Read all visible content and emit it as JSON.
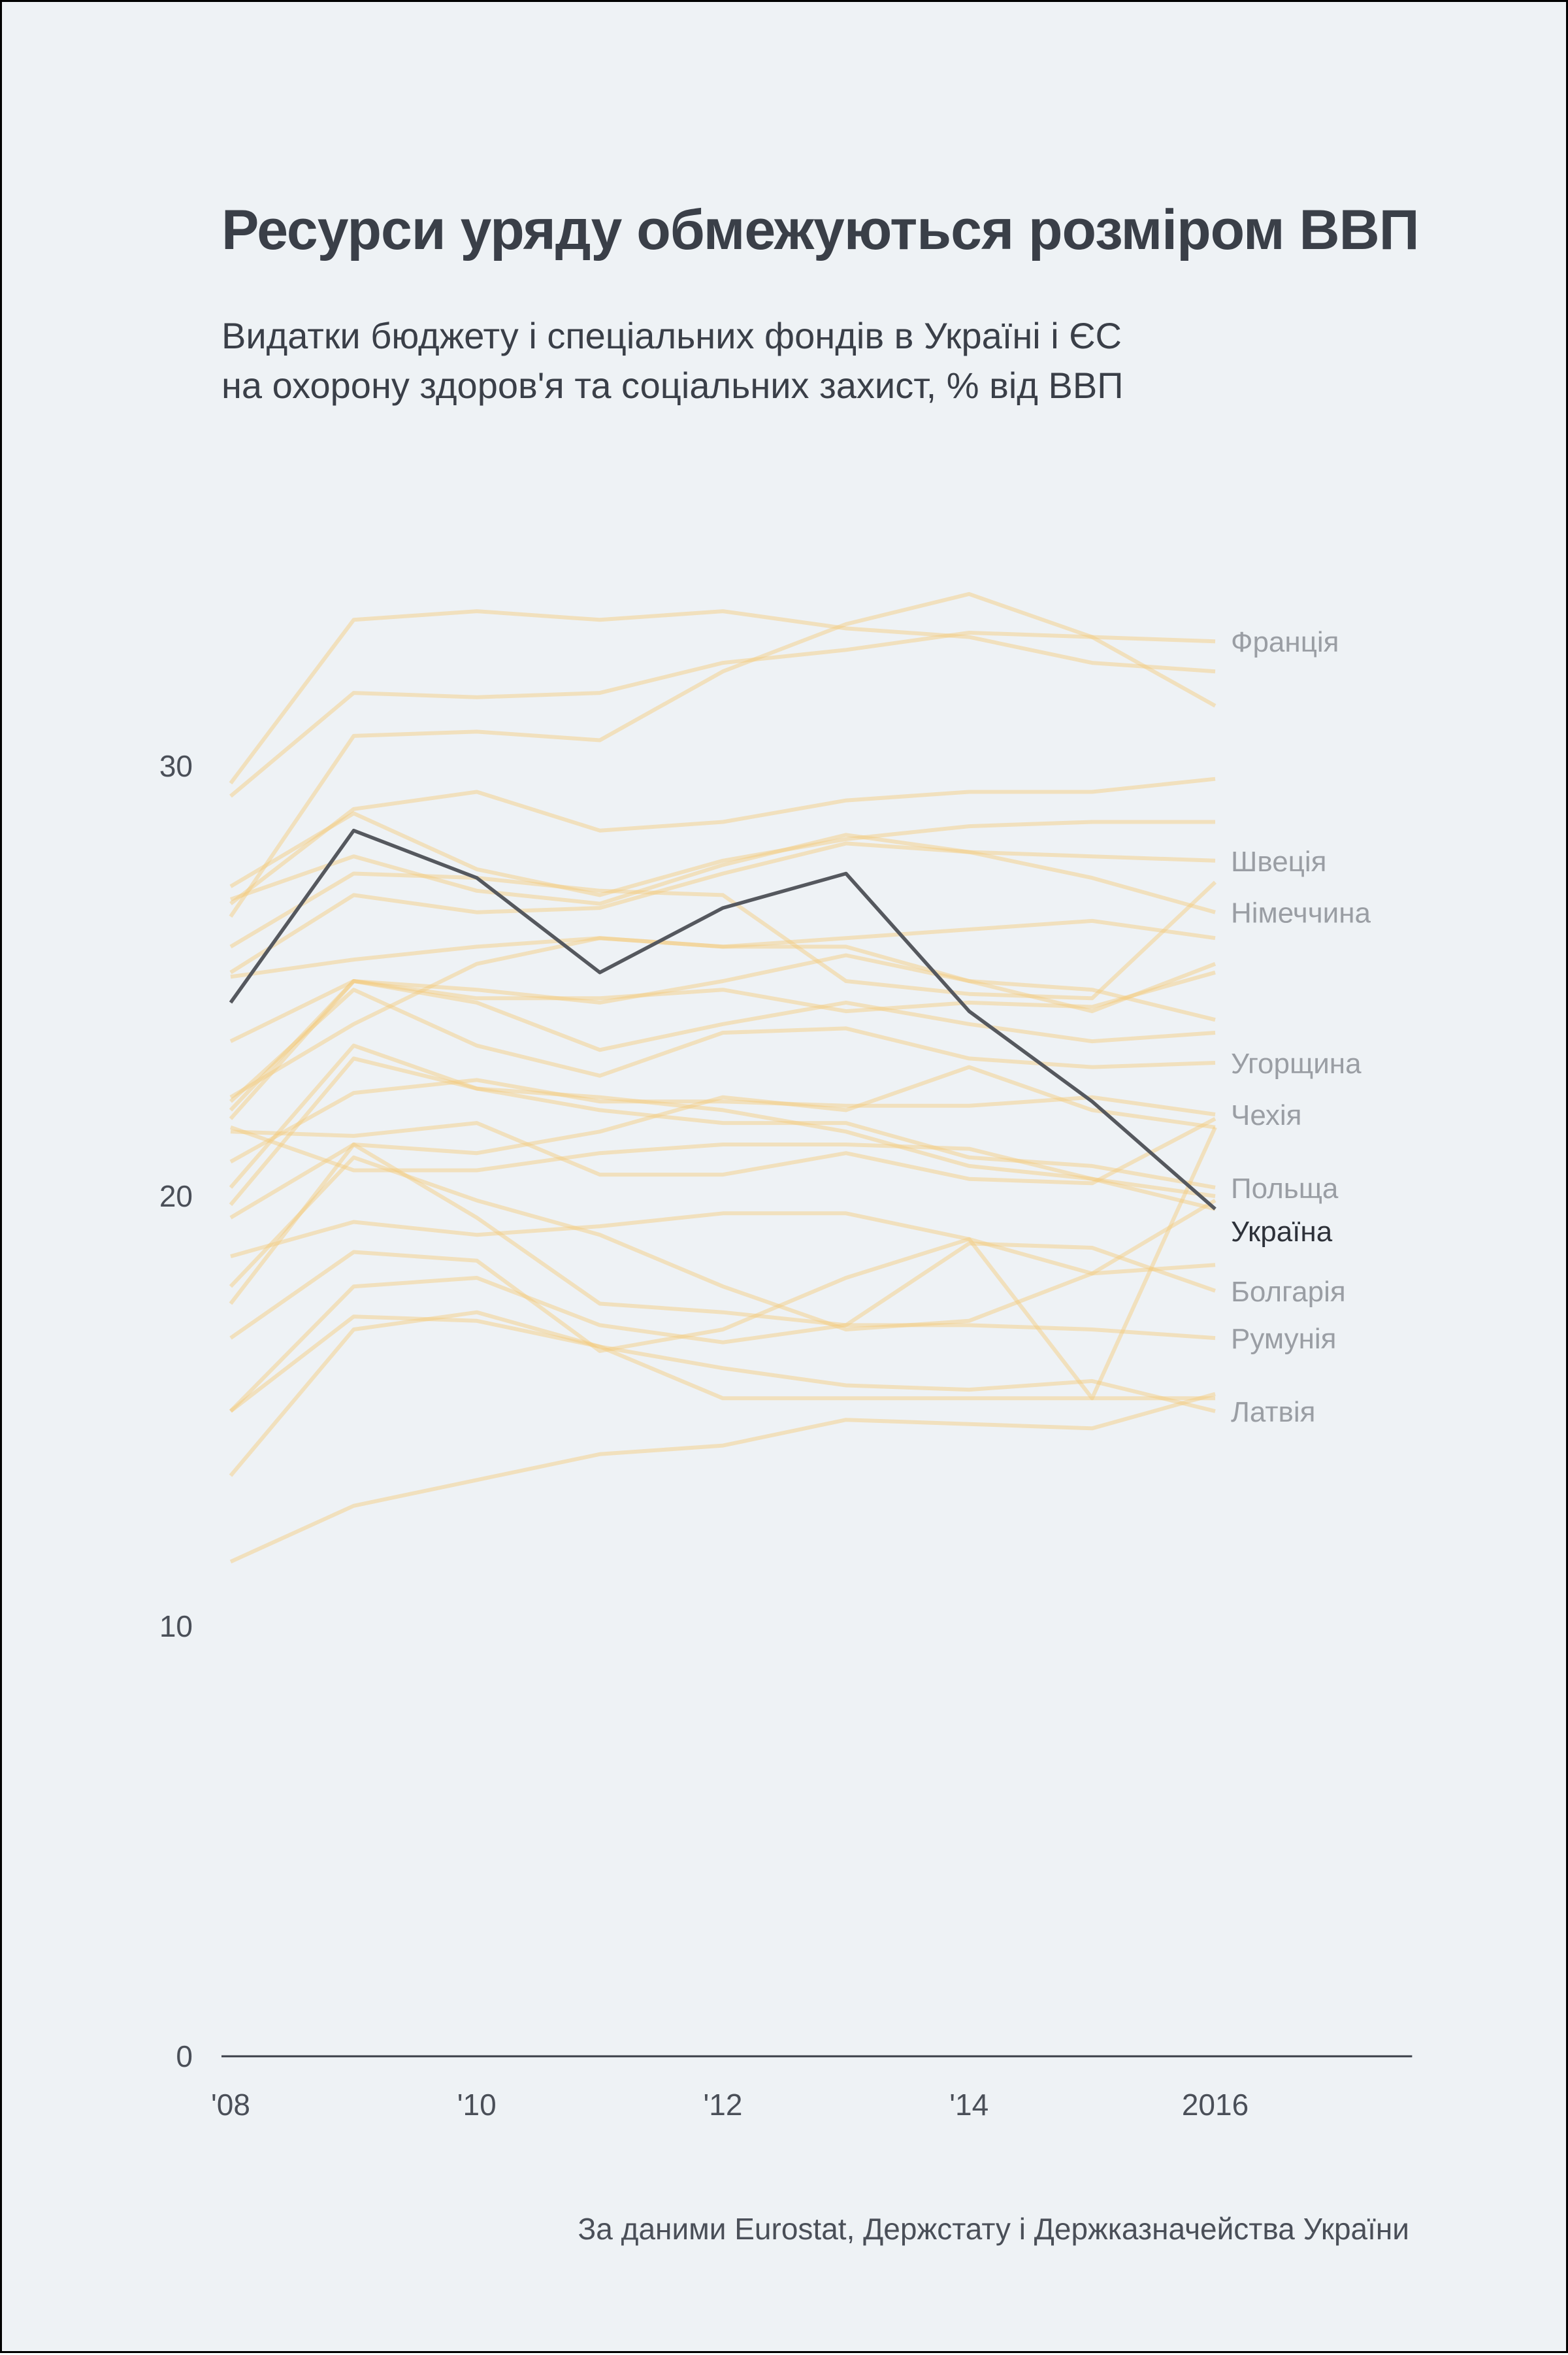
{
  "title": "Ресурси уряду обмежуються розміром ВВП",
  "subtitle_lines": [
    "Видатки бюджету і спеціальних фондів в Україні і ЄС",
    "на охорону здоров'я та соціальних захист, % від ВВП"
  ],
  "source": "За даними Eurostat, Держстату і Держказначейства України",
  "colors": {
    "background": "#eef2f5",
    "other_countries": "#f5c97a",
    "highlight": "#55585e",
    "axis": "#3a3f48"
  },
  "chart_data": {
    "type": "line",
    "x": [
      2008,
      2009,
      2010,
      2011,
      2012,
      2013,
      2014,
      2015,
      2016
    ],
    "x_tick_labels": [
      {
        "value": 2008,
        "label": "'08"
      },
      {
        "value": 2010,
        "label": "'10"
      },
      {
        "value": 2012,
        "label": "'12"
      },
      {
        "value": 2014,
        "label": "'14"
      },
      {
        "value": 2016,
        "label": "2016"
      }
    ],
    "xlim": [
      2008,
      2017.6
    ],
    "y_ticks": [
      0,
      10,
      20,
      30
    ],
    "ylim": [
      0,
      36
    ],
    "grid": false,
    "highlight": {
      "name": "Україна",
      "values": [
        24.5,
        28.5,
        27.4,
        25.2,
        26.7,
        27.5,
        24.3,
        22.2,
        19.7
      ]
    },
    "series": [
      {
        "name": "Франція",
        "values": [
          29.3,
          31.7,
          31.6,
          31.7,
          32.4,
          32.7,
          33.1,
          33.0,
          32.9
        ]
      },
      {
        "name": "",
        "values": [
          29.6,
          33.4,
          33.6,
          33.4,
          33.6,
          33.2,
          33.0,
          32.4,
          32.2
        ]
      },
      {
        "name": "",
        "values": [
          26.5,
          30.7,
          30.8,
          30.6,
          32.2,
          33.3,
          34.0,
          33.0,
          31.4
        ]
      },
      {
        "name": "",
        "values": [
          26.8,
          29.0,
          29.4,
          28.5,
          28.7,
          29.2,
          29.4,
          29.4,
          29.7
        ]
      },
      {
        "name": "",
        "values": [
          27.2,
          28.9,
          27.6,
          27.0,
          27.8,
          28.3,
          28.6,
          28.7,
          28.7
        ]
      },
      {
        "name": "Швеція",
        "values": [
          26.9,
          27.9,
          27.1,
          26.8,
          27.7,
          28.4,
          28.0,
          27.9,
          27.8
        ]
      },
      {
        "name": "",
        "values": [
          25.8,
          27.5,
          27.4,
          27.1,
          27.0,
          25.0,
          24.7,
          24.6,
          27.3
        ]
      },
      {
        "name": "Німеччина",
        "values": [
          25.2,
          27.0,
          26.6,
          26.7,
          27.5,
          28.2,
          28.0,
          27.4,
          26.6
        ]
      },
      {
        "name": "",
        "values": [
          25.1,
          25.5,
          25.8,
          26.0,
          25.8,
          26.0,
          26.2,
          26.4,
          26.0
        ]
      },
      {
        "name": "",
        "values": [
          23.6,
          25.0,
          24.8,
          24.5,
          25.0,
          25.6,
          25.0,
          24.3,
          25.4
        ]
      },
      {
        "name": "",
        "values": [
          22.0,
          25.0,
          24.6,
          24.6,
          24.8,
          24.3,
          24.5,
          24.4,
          25.2
        ]
      },
      {
        "name": "",
        "values": [
          22.3,
          24.0,
          25.4,
          26.0,
          25.8,
          25.8,
          25.0,
          24.8,
          24.1
        ]
      },
      {
        "name": "",
        "values": [
          21.8,
          25.0,
          24.5,
          23.4,
          24.0,
          24.5,
          24.0,
          23.6,
          23.8
        ]
      },
      {
        "name": "Угорщина",
        "values": [
          22.2,
          24.8,
          23.5,
          22.8,
          23.8,
          23.9,
          23.2,
          23.0,
          23.1
        ]
      },
      {
        "name": "Чехія",
        "values": [
          20.8,
          22.4,
          22.7,
          22.2,
          22.2,
          22.1,
          22.1,
          22.3,
          21.9
        ]
      },
      {
        "name": "",
        "values": [
          21.5,
          21.4,
          21.7,
          20.5,
          20.5,
          21.0,
          20.4,
          20.3,
          21.8
        ]
      },
      {
        "name": "Польща",
        "values": [
          19.8,
          23.2,
          22.5,
          22.0,
          21.7,
          21.7,
          20.9,
          20.7,
          20.2
        ]
      },
      {
        "name": "",
        "values": [
          20.2,
          23.5,
          22.5,
          22.3,
          22.0,
          21.5,
          20.7,
          20.4,
          20.0
        ]
      },
      {
        "name": "",
        "values": [
          19.5,
          21.2,
          21.0,
          21.5,
          22.3,
          22.0,
          23.0,
          22.0,
          21.6
        ]
      },
      {
        "name": "",
        "values": [
          21.6,
          20.6,
          20.6,
          21.0,
          21.2,
          21.2,
          21.1,
          20.4,
          19.7
        ]
      },
      {
        "name": "",
        "values": [
          18.6,
          19.4,
          19.1,
          19.3,
          19.6,
          19.6,
          19.0,
          18.2,
          19.9
        ]
      },
      {
        "name": "Болгарія",
        "values": [
          17.5,
          21.2,
          19.5,
          17.5,
          17.3,
          17.0,
          18.9,
          18.8,
          17.8
        ]
      },
      {
        "name": "",
        "values": [
          17.9,
          20.9,
          19.9,
          19.1,
          17.9,
          16.9,
          17.1,
          18.2,
          18.4
        ]
      },
      {
        "name": "Румунія",
        "values": [
          15.0,
          17.9,
          18.1,
          17.0,
          16.6,
          17.0,
          17.0,
          16.9,
          16.7
        ]
      },
      {
        "name": "",
        "values": [
          16.7,
          18.7,
          18.5,
          16.4,
          16.9,
          18.1,
          19.0,
          15.3,
          21.6
        ]
      },
      {
        "name": "Латвія",
        "values": [
          13.5,
          16.9,
          17.3,
          16.5,
          16.0,
          15.6,
          15.5,
          15.7,
          15.0
        ]
      },
      {
        "name": "",
        "values": [
          15.0,
          17.2,
          17.1,
          16.5,
          15.3,
          15.3,
          15.3,
          15.3,
          15.3
        ]
      },
      {
        "name": "",
        "values": [
          11.5,
          12.8,
          13.4,
          14.0,
          14.2,
          14.8,
          14.7,
          14.6,
          15.4
        ]
      }
    ]
  }
}
